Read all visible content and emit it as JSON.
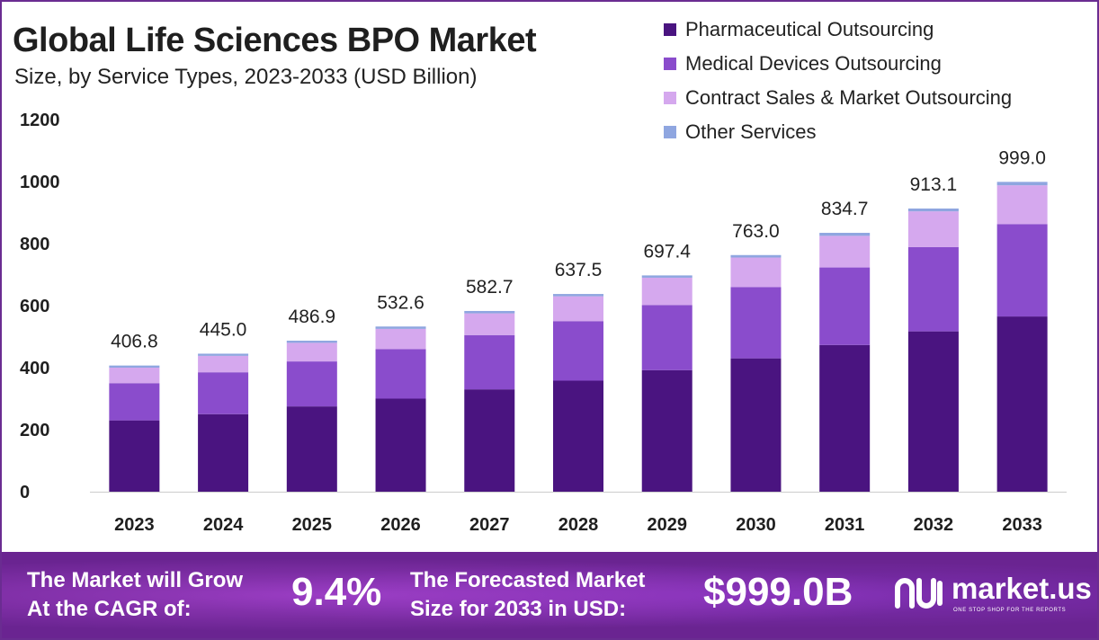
{
  "title": "Global Life Sciences BPO Market",
  "subtitle": "Size, by Service Types, 2023-2033 (USD Billion)",
  "legend": [
    {
      "label": "Pharmaceutical Outsourcing",
      "color": "#4a1480"
    },
    {
      "label": "Medical Devices Outsourcing",
      "color": "#8a4ccc"
    },
    {
      "label": "Contract Sales & Market Outsourcing",
      "color": "#d5a8ee"
    },
    {
      "label": "Other Services",
      "color": "#8fa6e0"
    }
  ],
  "chart_data": {
    "type": "bar",
    "stacked": true,
    "categories": [
      "2023",
      "2024",
      "2025",
      "2026",
      "2027",
      "2028",
      "2029",
      "2030",
      "2031",
      "2032",
      "2033"
    ],
    "series": [
      {
        "name": "Pharmaceutical Outsourcing",
        "color": "#4a1480",
        "values": [
          230,
          250,
          275,
          300,
          330,
          358,
          392,
          430,
          473,
          517,
          565
        ]
      },
      {
        "name": "Medical Devices Outsourcing",
        "color": "#8a4ccc",
        "values": [
          120,
          135,
          145,
          160,
          175,
          192,
          210,
          230,
          250,
          272,
          298
        ]
      },
      {
        "name": "Contract Sales & Market Outsourcing",
        "color": "#d5a8ee",
        "values": [
          50,
          53,
          60,
          65,
          70,
          80,
          88,
          95,
          102,
          115,
          125
        ]
      },
      {
        "name": "Other Services",
        "color": "#8fa6e0",
        "values": [
          6.8,
          7,
          6.9,
          7.6,
          7.7,
          7.5,
          7.4,
          8,
          9.7,
          9.1,
          11
        ]
      }
    ],
    "totals": [
      "406.8",
      "445.0",
      "486.9",
      "532.6",
      "582.7",
      "637.5",
      "697.4",
      "763.0",
      "834.7",
      "913.1",
      "999.0"
    ],
    "yticks": [
      0,
      200,
      400,
      600,
      800,
      1000,
      1200
    ],
    "ylim": [
      0,
      1200
    ],
    "grid": false,
    "legend_position": "top-right"
  },
  "footer": {
    "cagr_label_line1": "The Market will Grow",
    "cagr_label_line2": "At the CAGR of:",
    "cagr_value": "9.4%",
    "forecast_label_line1": "The Forecasted Market",
    "forecast_label_line2": "Size for 2033 in USD:",
    "forecast_value": "$999.0B",
    "logo_text": "market.us",
    "logo_tagline": "ONE STOP SHOP FOR THE REPORTS"
  }
}
